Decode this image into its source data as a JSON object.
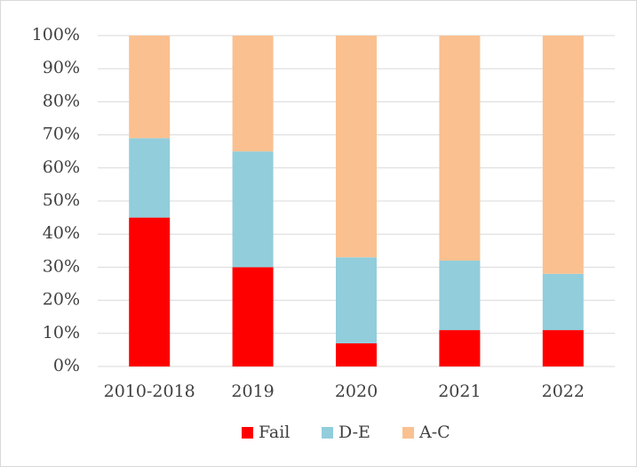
{
  "chart_data": {
    "type": "stacked_bar",
    "categories": [
      "2010-2018",
      "2019",
      "2020",
      "2021",
      "2022"
    ],
    "series": [
      {
        "name": "Fail",
        "color": "#ff0000",
        "values": [
          45,
          30,
          7,
          11,
          11
        ]
      },
      {
        "name": "D-E",
        "color": "#92cddc",
        "values": [
          24,
          35,
          26,
          21,
          17
        ]
      },
      {
        "name": "A-C",
        "color": "#fac090",
        "values": [
          31,
          35,
          67,
          68,
          72
        ]
      }
    ],
    "ylim": [
      0,
      100
    ],
    "yticks": [
      {
        "value": 0,
        "label": "0%"
      },
      {
        "value": 10,
        "label": "10%"
      },
      {
        "value": 20,
        "label": "20%"
      },
      {
        "value": 30,
        "label": "30%"
      },
      {
        "value": 40,
        "label": "40%"
      },
      {
        "value": 50,
        "label": "50%"
      },
      {
        "value": 60,
        "label": "60%"
      },
      {
        "value": 70,
        "label": "70%"
      },
      {
        "value": 80,
        "label": "80%"
      },
      {
        "value": 90,
        "label": "90%"
      },
      {
        "value": 100,
        "label": "100%"
      }
    ],
    "grid": true,
    "legend": "bottom"
  }
}
